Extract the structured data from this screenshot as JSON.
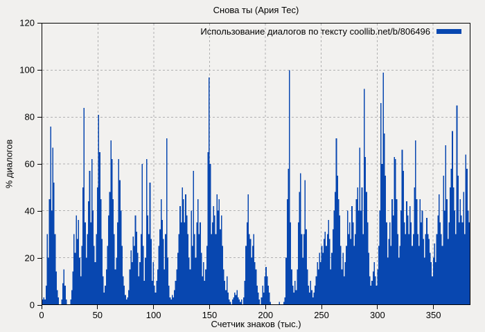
{
  "colors": {
    "bar": "#0847b0",
    "grid": "#b0b0b0",
    "background": "#f1f0ee",
    "border": "#000000"
  },
  "chart_data": {
    "type": "bar",
    "title": "Снова ты (Ария Тес)",
    "xlabel": "Счетчик знаков (тыс.)",
    "ylabel": "% диалогов",
    "xlim": [
      0,
      383
    ],
    "ylim": [
      0,
      120
    ],
    "xticks": [
      0,
      50,
      100,
      150,
      200,
      250,
      300,
      350
    ],
    "yticks": [
      0,
      20,
      40,
      60,
      80,
      100,
      120
    ],
    "grid": true,
    "legend_position": "top-right-inside",
    "series": [
      {
        "name": "Использование диалогов по тексту coollib.net/b/806496",
        "x_start": 0,
        "x_step": 1,
        "values": [
          2,
          3,
          2,
          8,
          30,
          20,
          45,
          76,
          40,
          67,
          52,
          30,
          14,
          6,
          3,
          0,
          0,
          2,
          9,
          15,
          8,
          2,
          0,
          0,
          0,
          2,
          6,
          14,
          30,
          22,
          38,
          28,
          36,
          20,
          12,
          25,
          50,
          84,
          35,
          20,
          30,
          44,
          57,
          35,
          62,
          40,
          25,
          18,
          30,
          50,
          81,
          65,
          45,
          28,
          12,
          5,
          8,
          15,
          25,
          38,
          48,
          70,
          62,
          45,
          30,
          15,
          20,
          35,
          62,
          53,
          40,
          25,
          12,
          8,
          4,
          2,
          3,
          6,
          15,
          23,
          18,
          29,
          25,
          38,
          31,
          22,
          12,
          18,
          30,
          60,
          25,
          10,
          20,
          62,
          38,
          30,
          52,
          28,
          10,
          18,
          8,
          5,
          10,
          15,
          25,
          32,
          45,
          36,
          28,
          15,
          30,
          71,
          20,
          8,
          3,
          2,
          4,
          3,
          6,
          10,
          15,
          22,
          30,
          42,
          35,
          50,
          45,
          35,
          47,
          38,
          30,
          20,
          15,
          40,
          25,
          57,
          30,
          20,
          35,
          45,
          30,
          35,
          22,
          12,
          18,
          10,
          15,
          25,
          65,
          97,
          60,
          30,
          35,
          42,
          38,
          30,
          47,
          40,
          45,
          32,
          38,
          25,
          15,
          10,
          6,
          12,
          5,
          2,
          1,
          0,
          2,
          3,
          5,
          4,
          6,
          3,
          2,
          1,
          2,
          0,
          3,
          10,
          25,
          35,
          47,
          30,
          28,
          20,
          25,
          30,
          18,
          15,
          8,
          5,
          2,
          0,
          3,
          8,
          5,
          12,
          16,
          12,
          8,
          5,
          1,
          0,
          0,
          0,
          0,
          0,
          0,
          0,
          1,
          0,
          0,
          0,
          1,
          3,
          20,
          45,
          58,
          100,
          35,
          15,
          8,
          5,
          10,
          6,
          15,
          35,
          48,
          56,
          30,
          20,
          30,
          53,
          32,
          15,
          8,
          5,
          10,
          6,
          3,
          5,
          8,
          12,
          18,
          15,
          22,
          18,
          25,
          22,
          28,
          31,
          25,
          30,
          36,
          28,
          15,
          22,
          32,
          40,
          48,
          71,
          55,
          45,
          38,
          25,
          15,
          22,
          12,
          18,
          25,
          40,
          30,
          35,
          28,
          42,
          35,
          25,
          30,
          45,
          50,
          40,
          67,
          40,
          50,
          30,
          92,
          63,
          48,
          35,
          22,
          12,
          8,
          10,
          14,
          18,
          12,
          8,
          15,
          25,
          40,
          86,
          60,
          99,
          73,
          55,
          35,
          20,
          28,
          35,
          25,
          45,
          38,
          63,
          62,
          45,
          30,
          20,
          25,
          40,
          66,
          57,
          35,
          30,
          44,
          38,
          30,
          42,
          35,
          25,
          30,
          50,
          70,
          45,
          30,
          25,
          45,
          35,
          40,
          28,
          20,
          30,
          37,
          30,
          28,
          22,
          18,
          12,
          20,
          26,
          18,
          30,
          38,
          47,
          35,
          30,
          25,
          55,
          40,
          68,
          45,
          28,
          35,
          50,
          58,
          74,
          50,
          40,
          30,
          85,
          55,
          35,
          45,
          38,
          35,
          48,
          30,
          64,
          58,
          40,
          35,
          20
        ]
      }
    ]
  }
}
